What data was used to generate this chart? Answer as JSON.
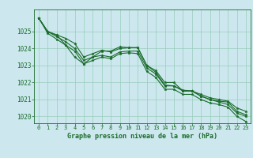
{
  "title": "Graphe pression niveau de la mer (hPa)",
  "background_color": "#cce8ee",
  "grid_color": "#99ccbb",
  "line_color": "#1a6b2a",
  "text_color": "#1a6b2a",
  "xlim": [
    -0.5,
    23.5
  ],
  "ylim": [
    1019.6,
    1026.3
  ],
  "yticks": [
    1020,
    1021,
    1022,
    1023,
    1024,
    1025
  ],
  "xticks": [
    0,
    1,
    2,
    3,
    4,
    5,
    6,
    7,
    8,
    9,
    10,
    11,
    12,
    13,
    14,
    15,
    16,
    17,
    18,
    19,
    20,
    21,
    22,
    23
  ],
  "series": [
    [
      1025.8,
      1025.0,
      1024.8,
      1024.6,
      1024.3,
      1023.5,
      1023.7,
      1023.9,
      1023.8,
      1024.0,
      1024.05,
      1024.05,
      1023.0,
      1022.7,
      1022.0,
      1022.0,
      1021.5,
      1021.5,
      1021.3,
      1021.1,
      1021.0,
      1020.9,
      1020.5,
      1020.3
    ],
    [
      1025.8,
      1025.0,
      1024.7,
      1024.4,
      1024.0,
      1023.3,
      1023.5,
      1023.6,
      1023.5,
      1023.8,
      1023.85,
      1023.85,
      1022.85,
      1022.5,
      1021.8,
      1021.8,
      1021.5,
      1021.5,
      1021.2,
      1021.0,
      1020.85,
      1020.7,
      1020.2,
      1020.0
    ],
    [
      1025.8,
      1024.9,
      1024.55,
      1024.2,
      1023.85,
      1023.1,
      1023.3,
      1023.5,
      1023.4,
      1023.7,
      1023.75,
      1023.7,
      1022.65,
      1022.3,
      1021.6,
      1021.6,
      1021.3,
      1021.3,
      1021.0,
      1020.8,
      1020.7,
      1020.55,
      1020.0,
      1019.7
    ],
    [
      1025.8,
      1025.0,
      1024.8,
      1024.2,
      1023.5,
      1023.1,
      1023.5,
      1023.85,
      1023.85,
      1024.1,
      1024.05,
      1024.05,
      1023.0,
      1022.6,
      1021.85,
      1021.8,
      1021.55,
      1021.5,
      1021.2,
      1021.0,
      1020.9,
      1020.85,
      1020.3,
      1020.1
    ]
  ]
}
